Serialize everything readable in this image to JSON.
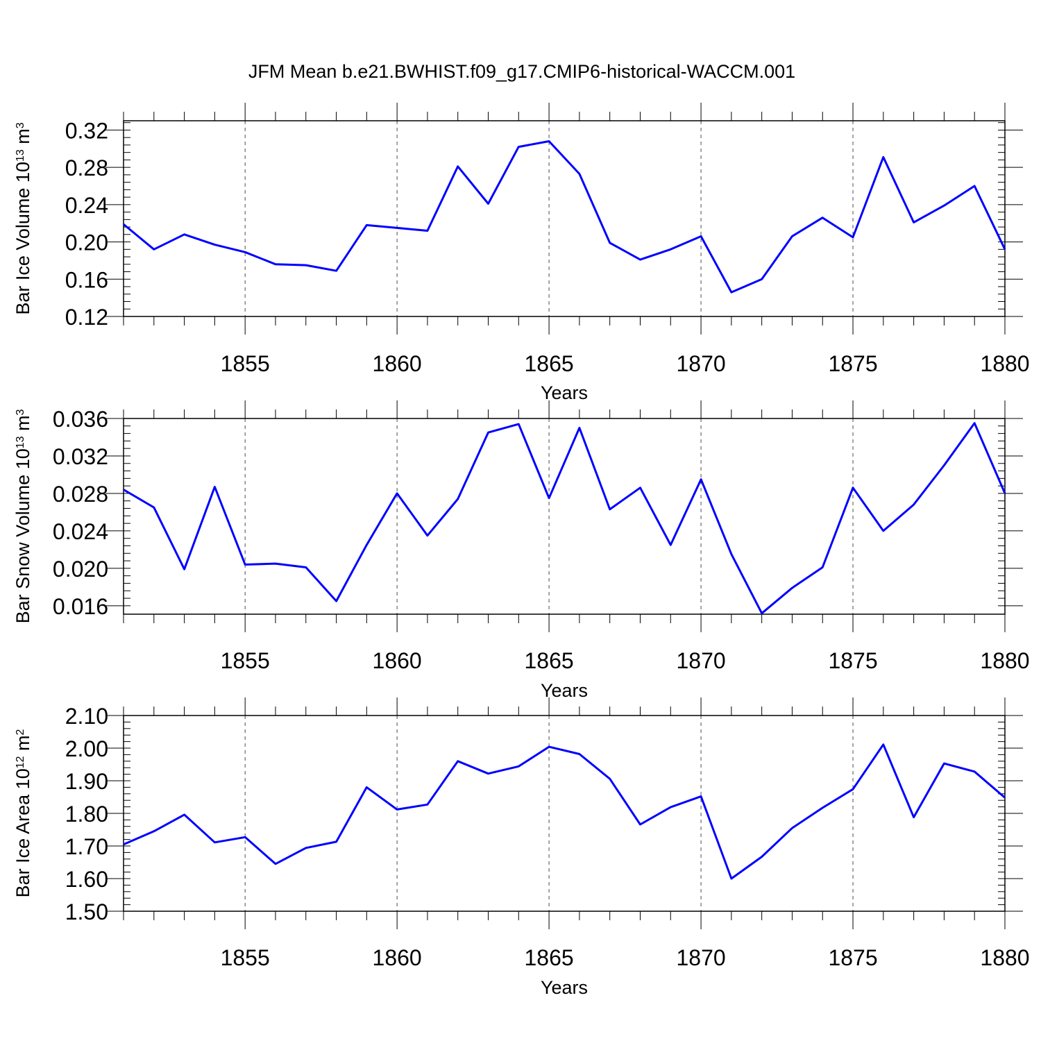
{
  "title": "JFM Mean b.e21.BWHIST.f09_g17.CMIP6-historical-WACCM.001",
  "colors": {
    "series": "#0000ff",
    "axis": "#000000",
    "grid": "#000000"
  },
  "chart_data": [
    {
      "type": "line",
      "ylabel": {
        "main": "Bar Ice Volume 10",
        "exp": "13",
        "unit": " m",
        "unit_exp": "3"
      },
      "xlabel": "Years",
      "xlim": [
        1851,
        1880
      ],
      "ylim": [
        0.12,
        0.33
      ],
      "yticks": [
        0.12,
        0.16,
        0.2,
        0.24,
        0.28,
        0.32
      ],
      "ytick_labels": [
        "0.12",
        "0.16",
        "0.20",
        "0.24",
        "0.28",
        "0.32"
      ],
      "xticks": [
        1855,
        1860,
        1865,
        1870,
        1875,
        1880
      ],
      "xtick_labels": [
        "1855",
        "1860",
        "1865",
        "1870",
        "1875",
        "1880"
      ],
      "x": [
        1851,
        1852,
        1853,
        1854,
        1855,
        1856,
        1857,
        1858,
        1859,
        1860,
        1861,
        1862,
        1863,
        1864,
        1865,
        1866,
        1867,
        1868,
        1869,
        1870,
        1871,
        1872,
        1873,
        1874,
        1875,
        1876,
        1877,
        1878,
        1879,
        1880
      ],
      "y": [
        0.219,
        0.192,
        0.208,
        0.197,
        0.189,
        0.176,
        0.175,
        0.169,
        0.218,
        0.215,
        0.212,
        0.281,
        0.241,
        0.302,
        0.308,
        0.273,
        0.199,
        0.181,
        0.192,
        0.206,
        0.146,
        0.16,
        0.206,
        0.226,
        0.205,
        0.291,
        0.221,
        0.239,
        0.26,
        0.192
      ]
    },
    {
      "type": "line",
      "ylabel": {
        "main": "Bar Snow Volume 10",
        "exp": "13",
        "unit": " m",
        "unit_exp": "3"
      },
      "xlabel": "Years",
      "xlim": [
        1851,
        1880
      ],
      "ylim": [
        0.0151,
        0.036
      ],
      "yticks": [
        0.016,
        0.02,
        0.024,
        0.028,
        0.032,
        0.036
      ],
      "ytick_labels": [
        "0.016",
        "0.020",
        "0.024",
        "0.028",
        "0.032",
        "0.036"
      ],
      "xticks": [
        1855,
        1860,
        1865,
        1870,
        1875,
        1880
      ],
      "xtick_labels": [
        "1855",
        "1860",
        "1865",
        "1870",
        "1875",
        "1880"
      ],
      "x": [
        1851,
        1852,
        1853,
        1854,
        1855,
        1856,
        1857,
        1858,
        1859,
        1860,
        1861,
        1862,
        1863,
        1864,
        1865,
        1866,
        1867,
        1868,
        1869,
        1870,
        1871,
        1872,
        1873,
        1874,
        1875,
        1876,
        1877,
        1878,
        1879,
        1880
      ],
      "y": [
        0.0284,
        0.0265,
        0.0199,
        0.0287,
        0.0204,
        0.0205,
        0.0201,
        0.0165,
        0.0225,
        0.028,
        0.0235,
        0.0274,
        0.0345,
        0.0354,
        0.0275,
        0.035,
        0.0263,
        0.0286,
        0.0225,
        0.0295,
        0.0215,
        0.0152,
        0.0179,
        0.0201,
        0.0286,
        0.024,
        0.0268,
        0.031,
        0.0355,
        0.028
      ]
    },
    {
      "type": "line",
      "ylabel": {
        "main": "Bar Ice Area 10",
        "exp": "12",
        "unit": " m",
        "unit_exp": "2"
      },
      "xlabel": "Years",
      "xlim": [
        1851,
        1880
      ],
      "ylim": [
        1.5,
        2.1
      ],
      "yticks": [
        1.5,
        1.6,
        1.7,
        1.8,
        1.9,
        2.0,
        2.1
      ],
      "ytick_labels": [
        "1.50",
        "1.60",
        "1.70",
        "1.80",
        "1.90",
        "2.00",
        "2.10"
      ],
      "xticks": [
        1855,
        1860,
        1865,
        1870,
        1875,
        1880
      ],
      "xtick_labels": [
        "1855",
        "1860",
        "1865",
        "1870",
        "1875",
        "1880"
      ],
      "x": [
        1851,
        1852,
        1853,
        1854,
        1855,
        1856,
        1857,
        1858,
        1859,
        1860,
        1861,
        1862,
        1863,
        1864,
        1865,
        1866,
        1867,
        1868,
        1869,
        1870,
        1871,
        1872,
        1873,
        1874,
        1875,
        1876,
        1877,
        1878,
        1879,
        1880
      ],
      "y": [
        1.705,
        1.745,
        1.796,
        1.711,
        1.727,
        1.645,
        1.694,
        1.713,
        1.88,
        1.812,
        1.827,
        1.96,
        1.922,
        1.944,
        2.004,
        1.982,
        1.906,
        1.766,
        1.819,
        1.852,
        1.6,
        1.667,
        1.755,
        1.817,
        1.874,
        2.011,
        1.788,
        1.953,
        1.928,
        1.848
      ]
    }
  ]
}
